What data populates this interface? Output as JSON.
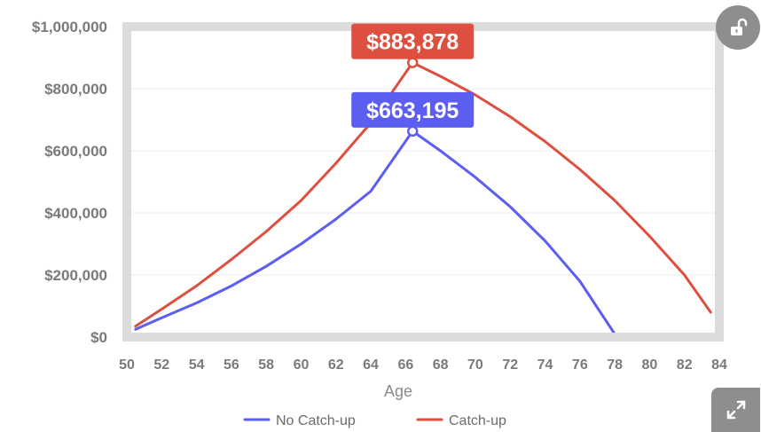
{
  "chart_data": {
    "type": "line",
    "xlabel": "Age",
    "ylabel": "",
    "xlim": [
      50,
      84
    ],
    "ylim": [
      0,
      1000000
    ],
    "xticks": [
      "50",
      "52",
      "54",
      "56",
      "58",
      "60",
      "62",
      "64",
      "66",
      "68",
      "70",
      "72",
      "74",
      "76",
      "78",
      "80",
      "82",
      "84"
    ],
    "yticks": [
      "$0",
      "$200,000",
      "$400,000",
      "$600,000",
      "$800,000",
      "$1,000,000"
    ],
    "grid": "horizontal",
    "legend_position": "bottom",
    "series": [
      {
        "name": "No Catch-up",
        "color": "#5b5ef0",
        "points": [
          [
            50.5,
            25000
          ],
          [
            52,
            62000
          ],
          [
            54,
            110000
          ],
          [
            56,
            165000
          ],
          [
            58,
            228000
          ],
          [
            60,
            300000
          ],
          [
            62,
            380000
          ],
          [
            64,
            470000
          ],
          [
            66.4,
            663195
          ],
          [
            68,
            600000
          ],
          [
            70,
            515000
          ],
          [
            72,
            420000
          ],
          [
            74,
            310000
          ],
          [
            76,
            180000
          ],
          [
            78,
            10000
          ]
        ]
      },
      {
        "name": "Catch-up",
        "color": "#dd4f3f",
        "points": [
          [
            50.5,
            35000
          ],
          [
            52,
            90000
          ],
          [
            54,
            165000
          ],
          [
            56,
            250000
          ],
          [
            58,
            340000
          ],
          [
            60,
            440000
          ],
          [
            62,
            560000
          ],
          [
            64,
            690000
          ],
          [
            66.4,
            883878
          ],
          [
            68,
            840000
          ],
          [
            70,
            780000
          ],
          [
            72,
            710000
          ],
          [
            74,
            630000
          ],
          [
            76,
            540000
          ],
          [
            78,
            440000
          ],
          [
            80,
            325000
          ],
          [
            82,
            200000
          ],
          [
            83.5,
            80000
          ]
        ]
      }
    ],
    "annotations": [
      {
        "series": "Catch-up",
        "x": 66.4,
        "y": 883878,
        "label": "$883,878",
        "color": "#dd4f3f"
      },
      {
        "series": "No Catch-up",
        "x": 66.4,
        "y": 663195,
        "label": "$663,195",
        "color": "#5b5ef0"
      }
    ]
  },
  "controls": {
    "unlock_icon": "unlock-icon",
    "expand_icon": "expand-icon"
  }
}
